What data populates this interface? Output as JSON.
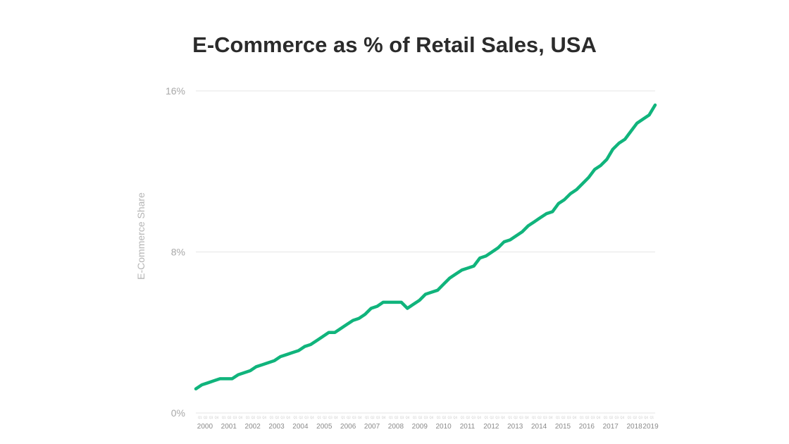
{
  "chart_data": {
    "type": "line",
    "title": "E-Commerce as % of Retail Sales, USA",
    "ylabel": "E-Commerce Share",
    "xlabel": "",
    "ylim": [
      0,
      16
    ],
    "y_ticks": [
      "0%",
      "8%",
      "16%"
    ],
    "y_tick_values": [
      0,
      8,
      16
    ],
    "years": [
      "2000",
      "2001",
      "2002",
      "2003",
      "2004",
      "2005",
      "2006",
      "2007",
      "2008",
      "2009",
      "2010",
      "2011",
      "2012",
      "2013",
      "2014",
      "2015",
      "2016",
      "2017",
      "2018",
      "2019"
    ],
    "quarter_labels": [
      "Q1",
      "Q2",
      "Q3",
      "Q4"
    ],
    "grid": "horizontal",
    "line_color": "#10b47c",
    "series": [
      {
        "values": [
          1.2,
          1.4,
          1.5,
          1.6,
          1.7,
          1.7,
          1.7,
          1.9,
          2.0,
          2.1,
          2.3,
          2.4,
          2.5,
          2.6,
          2.8,
          2.9,
          3.0,
          3.1,
          3.3,
          3.4,
          3.6,
          3.8,
          4.0,
          4.0,
          4.2,
          4.4,
          4.6,
          4.7,
          4.9,
          5.2,
          5.3,
          5.5,
          5.5,
          5.5,
          5.5,
          5.2,
          5.4,
          5.6,
          5.9,
          6.0,
          6.1,
          6.4,
          6.7,
          6.9,
          7.1,
          7.2,
          7.3,
          7.7,
          7.8,
          8.0,
          8.2,
          8.5,
          8.6,
          8.8,
          9.0,
          9.3,
          9.5,
          9.7,
          9.9,
          10.0,
          10.4,
          10.6,
          10.9,
          11.1,
          11.4,
          11.7,
          12.1,
          12.3,
          12.6,
          13.1,
          13.4,
          13.6,
          14.0,
          14.4,
          14.6,
          14.8,
          15.3
        ]
      }
    ]
  }
}
